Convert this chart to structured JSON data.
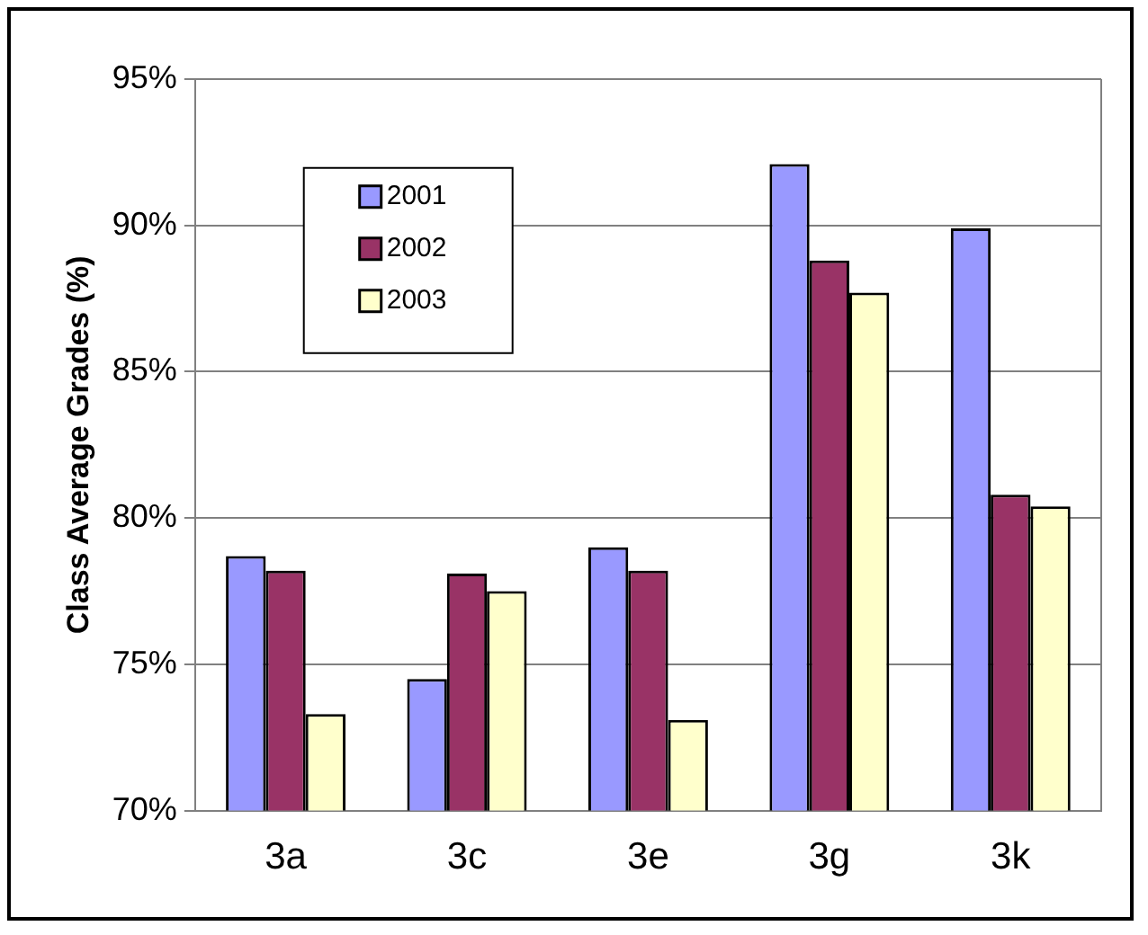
{
  "chart_data": {
    "type": "bar",
    "ylabel": "Class Average Grades (%)",
    "categories": [
      "3a",
      "3c",
      "3e",
      "3g",
      "3k"
    ],
    "series": [
      {
        "name": "2001",
        "color": "#9999ff",
        "values": [
          78.7,
          74.5,
          79.0,
          92.1,
          89.9
        ]
      },
      {
        "name": "2002",
        "color": "#993366",
        "values": [
          78.2,
          78.1,
          78.2,
          88.8,
          80.8
        ]
      },
      {
        "name": "2003",
        "color": "#ffffcc",
        "values": [
          73.3,
          77.5,
          73.1,
          87.7,
          80.4
        ]
      }
    ],
    "ylim": [
      70,
      95
    ],
    "yticks": [
      {
        "value": 70,
        "label": "70%"
      },
      {
        "value": 75,
        "label": "75%"
      },
      {
        "value": 80,
        "label": "80%"
      },
      {
        "value": 85,
        "label": "85%"
      },
      {
        "value": 90,
        "label": "90%"
      },
      {
        "value": 95,
        "label": "95%"
      }
    ],
    "grid": "y",
    "legend": "top left"
  }
}
